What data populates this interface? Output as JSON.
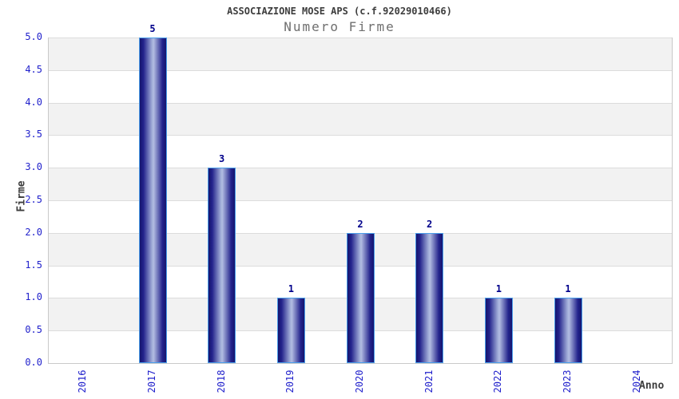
{
  "header": {
    "title": "ASSOCIAZIONE MOSE APS (c.f.92029010466)",
    "subtitle": "Numero Firme"
  },
  "chart_data": {
    "type": "bar",
    "title": "ASSOCIAZIONE MOSE APS (c.f.92029010466)",
    "subtitle": "Numero Firme",
    "categories": [
      "2016",
      "2017",
      "2018",
      "2019",
      "2020",
      "2021",
      "2022",
      "2023",
      "2024"
    ],
    "values": [
      0,
      5,
      3,
      1,
      2,
      2,
      1,
      1,
      0
    ],
    "xlabel": "Anno",
    "ylabel": "Firme",
    "ylim": [
      0,
      5
    ],
    "ytick_step": 0.5,
    "yticks": [
      "0.0",
      "0.5",
      "1.0",
      "1.5",
      "2.0",
      "2.5",
      "3.0",
      "3.5",
      "4.0",
      "4.5",
      "5.0"
    ],
    "grid": "horizontal alternating bands, gridline every 0.5",
    "legend": "none",
    "value_labels_shown_for_nonzero_bars": true
  },
  "colors": {
    "bar_gradient_edge": "#15156e",
    "bar_gradient_center": "#b3bde2",
    "bar_border": "#4a9eea",
    "value_label": "#00008b",
    "tick_label": "#2222cc",
    "band_gray": "#f2f2f2",
    "band_white": "#ffffff",
    "gridline": "#dcdcdc",
    "plot_border": "#c9c9c9",
    "title_color": "#3d3d3d",
    "subtitle_color": "#6f6f6f"
  }
}
